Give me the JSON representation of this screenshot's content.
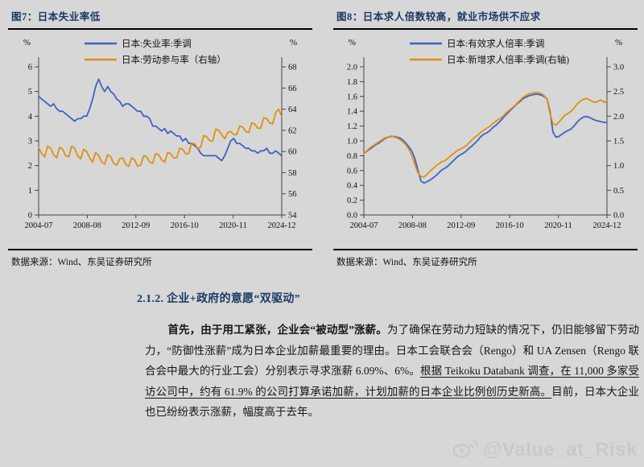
{
  "section": {
    "heading": "2.1.2.  企业+政府的意愿“双驱动”",
    "paragraph": {
      "bold_lead": "首先，由于用工紧张，企业会“被动型”涨薪。",
      "normal_1": "为了确保在劳动力短缺的情况下，仍旧能够留下劳动力，“防御性涨薪”成为日本企业加薪最重要的理由。日本工会联合会（Rengo）和 UA Zensen（Rengo 联合会中最大的行业工会）分别表示寻求涨薪 6.09%、6%。",
      "underlined": "根据 Teikoku Databank 调查，在 11,000 多家受访公司中，约有 61.9% 的公司打算承诺加薪，计划加薪的日本企业比例创历史新高。",
      "normal_2": "目前，日本大企业也已纷纷表示涨薪，幅度高于去年。"
    }
  },
  "watermark": {
    "handle": "@Value_at_Risk",
    "icon": "weibo-icon"
  },
  "colors": {
    "navy": "#1c3966",
    "blue_line": "#3e62c4",
    "orange_line": "#df9012",
    "background": "#d7d7d7"
  },
  "chart_data": [
    {
      "type": "line",
      "title": "图7：日本失业率低",
      "source": "数据来源：Wind、东吴证券研究所",
      "legend_position": "top",
      "grid": false,
      "left_axis": {
        "label": "%",
        "min": 0,
        "max": 6,
        "step": 1,
        "decimals": 0
      },
      "right_axis": {
        "label": "%",
        "min": 54,
        "max": 68,
        "step": 2,
        "decimals": 0
      },
      "x_ticks": [
        "2004-07",
        "2008-08",
        "2012-09",
        "2016-10",
        "2020-11",
        "2024-12"
      ],
      "x_range": "2004-07 to 2024-12, quarterly",
      "series": [
        {
          "name": "日本:失业率:季调",
          "axis": "left",
          "color": "#3e62c4",
          "values": [
            4.8,
            4.7,
            4.6,
            4.5,
            4.4,
            4.5,
            4.3,
            4.2,
            4.2,
            4.1,
            4.0,
            3.9,
            3.8,
            3.9,
            3.9,
            4.0,
            4.0,
            4.3,
            4.7,
            5.2,
            5.5,
            5.2,
            5.0,
            5.2,
            5.0,
            4.9,
            4.7,
            4.6,
            4.4,
            4.5,
            4.5,
            4.4,
            4.3,
            4.2,
            4.2,
            4.0,
            4.0,
            3.9,
            3.6,
            3.6,
            3.5,
            3.4,
            3.5,
            3.3,
            3.4,
            3.3,
            3.2,
            3.2,
            3.0,
            3.1,
            2.9,
            2.9,
            2.8,
            2.7,
            2.5,
            2.4,
            2.4,
            2.4,
            2.4,
            2.4,
            2.3,
            2.2,
            2.4,
            2.7,
            3.0,
            3.1,
            2.9,
            2.9,
            2.8,
            2.7,
            2.7,
            2.6,
            2.6,
            2.5,
            2.6,
            2.6,
            2.7,
            2.5,
            2.5,
            2.6,
            2.5,
            2.4
          ]
        },
        {
          "name": "日本:劳动参与率（右轴）",
          "axis": "right",
          "color": "#df9012",
          "values": [
            60.4,
            59.8,
            59.5,
            60.5,
            60.3,
            59.7,
            59.4,
            60.4,
            60.2,
            59.6,
            59.5,
            60.5,
            60.3,
            59.6,
            59.3,
            60.2,
            60.0,
            59.4,
            59.0,
            59.9,
            59.6,
            59.0,
            58.8,
            59.7,
            59.5,
            58.9,
            58.7,
            59.3,
            59.4,
            58.8,
            58.6,
            59.4,
            59.2,
            58.6,
            58.7,
            59.6,
            59.5,
            59.0,
            58.9,
            59.8,
            59.7,
            59.2,
            59.0,
            59.9,
            59.8,
            59.4,
            59.4,
            60.3,
            60.2,
            59.8,
            59.8,
            60.8,
            60.7,
            60.3,
            60.4,
            61.5,
            61.4,
            61.0,
            61.0,
            62.1,
            62.0,
            61.6,
            61.2,
            61.8,
            61.9,
            61.6,
            61.6,
            62.4,
            62.3,
            61.9,
            61.8,
            62.7,
            62.6,
            62.2,
            62.2,
            63.2,
            63.1,
            62.7,
            62.6,
            63.7,
            64.0,
            63.3
          ]
        }
      ]
    },
    {
      "type": "line",
      "title": "图8：日本求人倍数较高，就业市场供不应求",
      "source": "数据来源：Wind、东吴证券研究所",
      "legend_position": "top",
      "grid": false,
      "left_axis": {
        "label": "%",
        "min": 0,
        "max": 2,
        "step": 0.2,
        "decimals": 1
      },
      "right_axis": {
        "label": "%",
        "min": 0,
        "max": 3,
        "step": 0.5,
        "decimals": 1
      },
      "x_ticks": [
        "2004-07",
        "2008-08",
        "2012-09",
        "2016-10",
        "2020-11",
        "2024-12"
      ],
      "x_range": "2004-07 to 2024-12, quarterly",
      "series": [
        {
          "name": "日本:有效求人倍率:季调",
          "axis": "left",
          "color": "#3e62c4",
          "values": [
            0.83,
            0.86,
            0.89,
            0.92,
            0.95,
            0.97,
            1.0,
            1.03,
            1.05,
            1.06,
            1.06,
            1.05,
            1.04,
            1.01,
            0.97,
            0.92,
            0.86,
            0.76,
            0.61,
            0.46,
            0.43,
            0.45,
            0.47,
            0.5,
            0.53,
            0.57,
            0.61,
            0.63,
            0.66,
            0.7,
            0.74,
            0.78,
            0.81,
            0.83,
            0.86,
            0.9,
            0.93,
            0.97,
            1.01,
            1.06,
            1.09,
            1.11,
            1.14,
            1.18,
            1.21,
            1.25,
            1.29,
            1.34,
            1.38,
            1.42,
            1.46,
            1.5,
            1.53,
            1.57,
            1.59,
            1.61,
            1.62,
            1.63,
            1.63,
            1.62,
            1.6,
            1.57,
            1.4,
            1.12,
            1.05,
            1.06,
            1.09,
            1.12,
            1.14,
            1.16,
            1.2,
            1.25,
            1.29,
            1.32,
            1.33,
            1.32,
            1.3,
            1.28,
            1.27,
            1.26,
            1.25,
            1.25
          ]
        },
        {
          "name": "日本:新增求人倍率:季调(右轴)",
          "axis": "right",
          "color": "#df9012",
          "values": [
            1.24,
            1.3,
            1.36,
            1.4,
            1.44,
            1.48,
            1.52,
            1.56,
            1.58,
            1.6,
            1.58,
            1.56,
            1.53,
            1.48,
            1.42,
            1.33,
            1.2,
            1.02,
            0.86,
            0.78,
            0.77,
            0.82,
            0.88,
            0.94,
            0.99,
            1.04,
            1.08,
            1.1,
            1.15,
            1.2,
            1.25,
            1.3,
            1.33,
            1.36,
            1.4,
            1.46,
            1.52,
            1.58,
            1.62,
            1.68,
            1.72,
            1.76,
            1.8,
            1.85,
            1.9,
            1.94,
            1.98,
            2.04,
            2.1,
            2.15,
            2.2,
            2.26,
            2.32,
            2.38,
            2.42,
            2.45,
            2.47,
            2.48,
            2.48,
            2.46,
            2.42,
            2.35,
            2.05,
            1.85,
            1.82,
            1.88,
            1.95,
            2.02,
            2.06,
            2.1,
            2.16,
            2.24,
            2.3,
            2.34,
            2.36,
            2.34,
            2.3,
            2.28,
            2.3,
            2.33,
            2.28,
            2.31
          ]
        }
      ]
    }
  ]
}
